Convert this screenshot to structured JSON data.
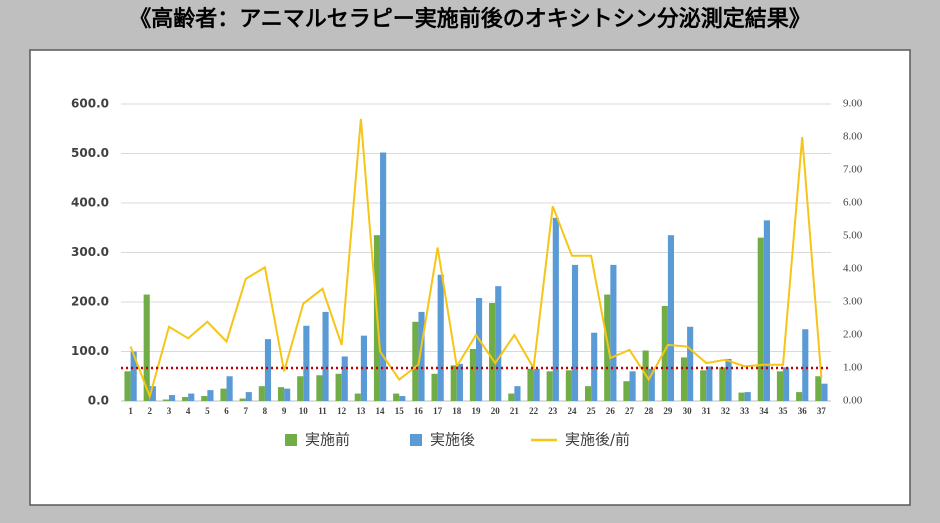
{
  "chart_data": {
    "type": "bar_line",
    "title": "《高齢者：アニマルセラピー実施前後のオキシトシン分泌測定結果》",
    "categories": [
      "1",
      "2",
      "3",
      "4",
      "5",
      "6",
      "7",
      "8",
      "9",
      "10",
      "11",
      "12",
      "13",
      "14",
      "15",
      "16",
      "17",
      "18",
      "19",
      "20",
      "21",
      "22",
      "23",
      "24",
      "25",
      "26",
      "27",
      "28",
      "29",
      "30",
      "31",
      "32",
      "33",
      "34",
      "35",
      "36",
      "37"
    ],
    "series": [
      {
        "name": "実施前",
        "type": "bar",
        "color": "#70ad47",
        "values": [
          60,
          215,
          3,
          8,
          10,
          25,
          5,
          30,
          28,
          50,
          52,
          55,
          15,
          335,
          15,
          160,
          55,
          72,
          105,
          198,
          15,
          65,
          60,
          62,
          30,
          215,
          40,
          102,
          192,
          88,
          62,
          68,
          17,
          330,
          60,
          18,
          50
        ]
      },
      {
        "name": "実施後",
        "type": "bar",
        "color": "#5b9bd5",
        "values": [
          100,
          30,
          12,
          15,
          22,
          50,
          18,
          125,
          25,
          152,
          180,
          90,
          132,
          502,
          10,
          180,
          255,
          75,
          208,
          232,
          30,
          65,
          370,
          275,
          138,
          275,
          60,
          65,
          335,
          150,
          70,
          85,
          18,
          365,
          68,
          145,
          35
        ]
      },
      {
        "name": "実施後/前",
        "type": "line",
        "axis": "y2",
        "color": "#f5c518",
        "values": [
          1.65,
          0.14,
          2.25,
          1.9,
          2.4,
          1.8,
          3.7,
          4.05,
          0.9,
          2.95,
          3.4,
          1.7,
          8.55,
          1.5,
          0.65,
          1.1,
          4.65,
          1.05,
          2.0,
          1.15,
          2.0,
          1.0,
          5.9,
          4.4,
          4.4,
          1.3,
          1.55,
          0.65,
          1.7,
          1.65,
          1.15,
          1.25,
          1.05,
          1.1,
          1.1,
          8.0,
          0.7
        ]
      }
    ],
    "ylim": [
      0,
      600
    ],
    "yticks": [
      {
        "value": 0,
        "label": "0.0"
      },
      {
        "value": 100,
        "label": "100.0"
      },
      {
        "value": 200,
        "label": "200.0"
      },
      {
        "value": 300,
        "label": "300.0"
      },
      {
        "value": 400,
        "label": "400.0"
      },
      {
        "value": 500,
        "label": "500.0"
      },
      {
        "value": 600,
        "label": "600.0"
      }
    ],
    "y2lim": [
      0,
      9
    ],
    "y2ticks": [
      {
        "value": 0,
        "label": "0.00"
      },
      {
        "value": 1,
        "label": "1.00"
      },
      {
        "value": 2,
        "label": "2.00"
      },
      {
        "value": 3,
        "label": "3.00"
      },
      {
        "value": 4,
        "label": "4.00"
      },
      {
        "value": 5,
        "label": "5.00"
      },
      {
        "value": 6,
        "label": "6.00"
      },
      {
        "value": 7,
        "label": "7.00"
      },
      {
        "value": 8,
        "label": "8.00"
      },
      {
        "value": 9,
        "label": "9.00"
      }
    ],
    "reference_line": {
      "value": 1,
      "axis": "y2",
      "color": "#c00000"
    },
    "grid": true,
    "legend": "bottom"
  }
}
